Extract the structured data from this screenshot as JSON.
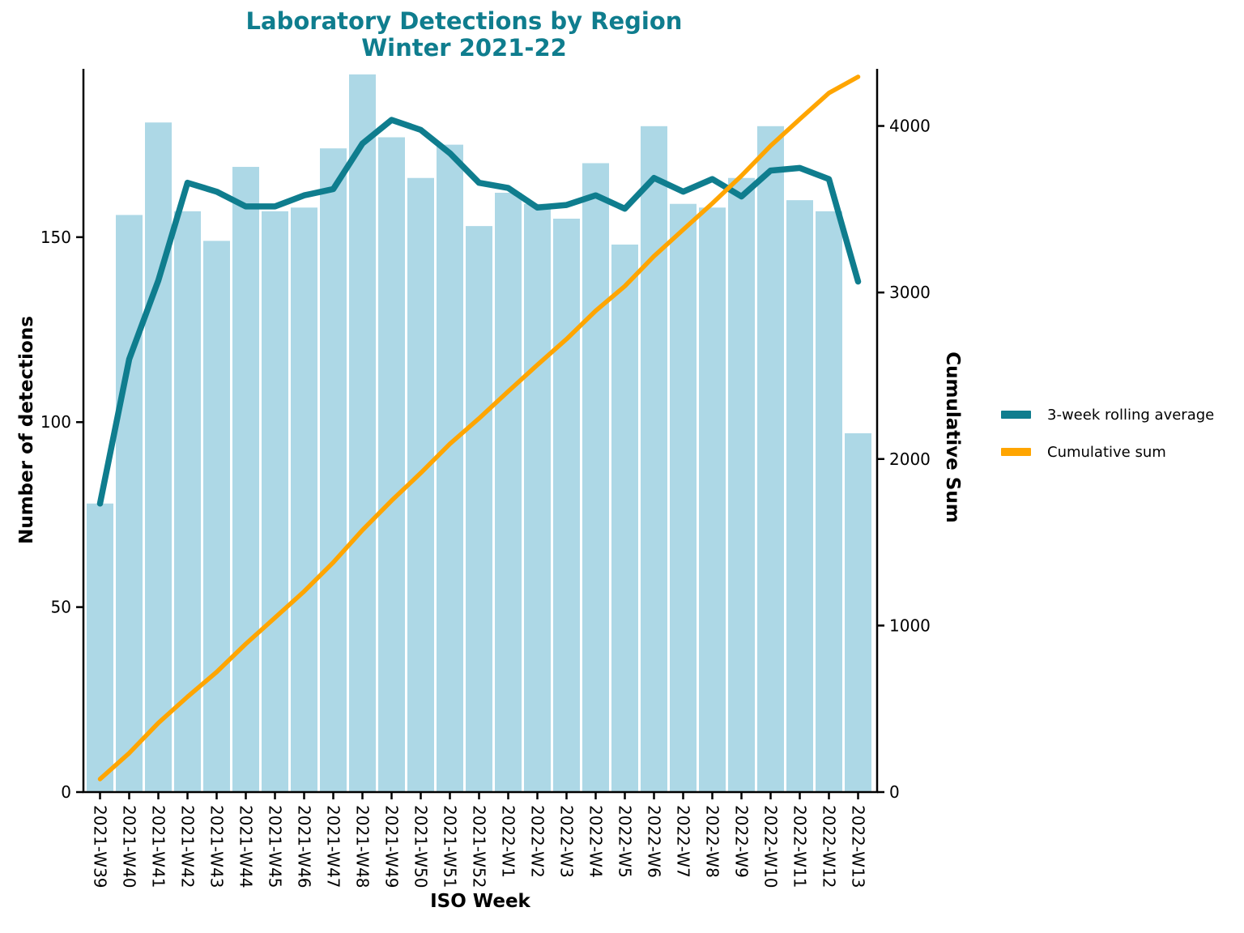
{
  "title": {
    "line1": "Laboratory Detections by Region",
    "line2": "Winter 2021-22"
  },
  "colors": {
    "bars": "#ADD8E6",
    "rolling_line": "#0F7D8E",
    "cumulative_line": "#FFA500",
    "title_text": "#0F7D8E",
    "axis": "#000000",
    "background": "#FFFFFF"
  },
  "legend": {
    "items": [
      {
        "label": "3-week rolling average",
        "color": "#0F7D8E"
      },
      {
        "label": "Cumulative sum",
        "color": "#FFA500"
      }
    ]
  },
  "chart_data": {
    "type": "bar",
    "subtype": "bars with two overlay lines, dual y-axes",
    "title": "Laboratory Detections by Region\nWinter 2021-22",
    "xlabel": "ISO Week",
    "ylabel_left": "Number of detections",
    "ylabel_right": "Cumulative Sum",
    "categories": [
      "2021-W39",
      "2021-W40",
      "2021-W41",
      "2021-W42",
      "2021-W43",
      "2021-W44",
      "2021-W45",
      "2021-W46",
      "2021-W47",
      "2021-W48",
      "2021-W49",
      "2021-W50",
      "2021-W51",
      "2021-W52",
      "2022-W1",
      "2022-W2",
      "2022-W3",
      "2022-W4",
      "2022-W5",
      "2022-W6",
      "2022-W7",
      "2022-W8",
      "2022-W9",
      "2022-W10",
      "2022-W11",
      "2022-W12",
      "2022-W13"
    ],
    "series": [
      {
        "name": "Number of detections",
        "type": "bar",
        "yaxis": "left",
        "color": "#ADD8E6",
        "values": [
          78,
          156,
          181,
          157,
          149,
          169,
          157,
          158,
          174,
          194,
          177,
          166,
          175,
          153,
          162,
          159,
          155,
          170,
          148,
          180,
          159,
          158,
          166,
          180,
          160,
          157,
          97
        ]
      },
      {
        "name": "3-week rolling average",
        "type": "line",
        "yaxis": "left",
        "color": "#0F7D8E",
        "values": [
          78,
          117,
          138.3,
          164.7,
          162.3,
          158.3,
          158.3,
          161.3,
          163,
          175.3,
          181.7,
          179,
          172.7,
          164.7,
          163.3,
          158,
          158.7,
          161.3,
          157.7,
          166,
          162.3,
          165.7,
          161,
          168,
          168.7,
          165.7,
          138
        ]
      },
      {
        "name": "Cumulative sum",
        "type": "line",
        "yaxis": "right",
        "color": "#FFA500",
        "values": [
          78,
          234,
          415,
          572,
          721,
          890,
          1047,
          1205,
          1379,
          1573,
          1750,
          1916,
          2091,
          2244,
          2406,
          2565,
          2720,
          2890,
          3038,
          3218,
          3377,
          3535,
          3701,
          3881,
          4041,
          4198,
          4295
        ]
      }
    ],
    "yticks_left": [
      0,
      50,
      100,
      150
    ],
    "yticks_right": [
      0,
      1000,
      2000,
      3000,
      4000
    ],
    "ylim_left": [
      0,
      195.5
    ],
    "ylim_right": [
      0,
      4343
    ],
    "grid": false,
    "legend_position": "right-outside"
  }
}
